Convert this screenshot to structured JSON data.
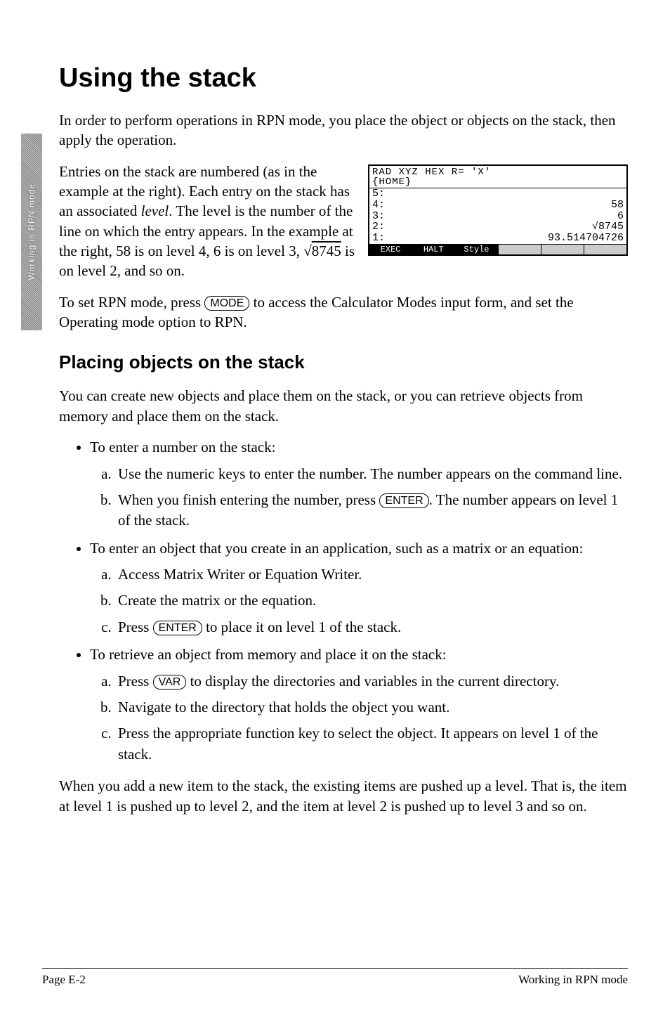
{
  "sidebar": {
    "label": "Working in RPN mode"
  },
  "title": "Using the stack",
  "intro": "In order to perform operations in RPN mode, you place the object or objects on the stack, then apply the operation.",
  "stack_para_a": "Entries on the stack are numbered (as in the example at the right). Each entry on the stack has an associated ",
  "stack_para_level_word": "level",
  "stack_para_b": ". The level is the number of the line on which the entry appears. In the example at the right, 58 is on level 4, 6 is on level 3, ",
  "stack_para_sqrt_sym": "√",
  "stack_para_sqrt_arg": "8745",
  "stack_para_c": " is on level 2, and so on.",
  "calc": {
    "header_line1": "RAD XYZ HEX R= 'X'",
    "header_line2": "{HOME}",
    "rows": [
      {
        "level": "5:",
        "value": ""
      },
      {
        "level": "4:",
        "value": "58"
      },
      {
        "level": "3:",
        "value": "6"
      },
      {
        "level": "2:",
        "value": "√8745"
      },
      {
        "level": "1:",
        "value": "93.514704726"
      }
    ],
    "menu": [
      "EXEC",
      "HALT",
      "Style",
      "",
      "",
      ""
    ]
  },
  "mode_para_a": "To set RPN mode, press ",
  "key_mode": "MODE",
  "mode_para_b": " to access the Calculator Modes input form, and set the Operating mode option to RPN.",
  "section2": "Placing objects on the stack",
  "s2_intro": "You can create new objects and place them on the stack, or you can retrieve objects from memory and place them on the stack.",
  "b1": {
    "lead": "To enter a number on the stack:",
    "a": "Use the numeric keys to enter the number. The number appears on the command line.",
    "b_a": "When you finish entering the number, press ",
    "b_b": ". The number appears on level 1 of the stack."
  },
  "key_enter": "ENTER",
  "b2": {
    "lead": "To enter an object that you create in an application, such as a matrix or an equation:",
    "a": "Access Matrix Writer or Equation Writer.",
    "b": "Create the matrix or the equation.",
    "c_a": "Press ",
    "c_b": " to place it on level 1 of the stack."
  },
  "b3": {
    "lead": "To retrieve an object from memory and place it on the stack:",
    "a_a": "Press ",
    "a_b": " to display the directories and variables in the current directory.",
    "b": "Navigate to the directory that holds the object you want.",
    "c": "Press the appropriate function key to select the object. It appears on level 1 of the stack."
  },
  "key_var": "VAR",
  "closing": "When you add a new item to the stack, the existing items are pushed up a level. That is, the item at level 1 is pushed up to level 2, and the item at level 2 is pushed up to level 3 and so on.",
  "footer": {
    "left": "Page E-2",
    "right": "Working in RPN mode"
  }
}
